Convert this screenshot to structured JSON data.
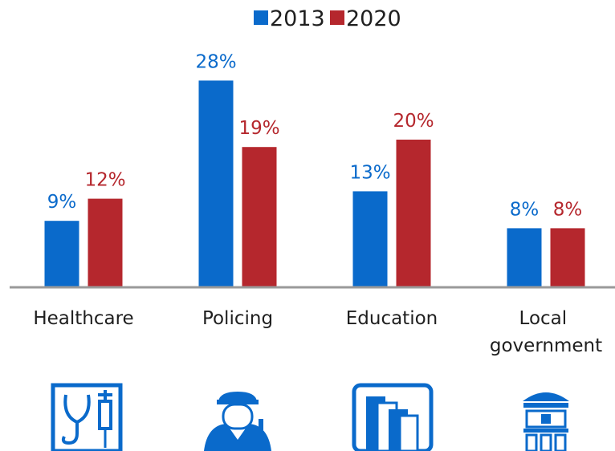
{
  "chart_data": {
    "type": "bar",
    "title": "",
    "xlabel": "",
    "ylabel": "",
    "categories": [
      "Healthcare",
      "Policing",
      "Education",
      "Local government"
    ],
    "series": [
      {
        "name": "2013",
        "values": [
          9,
          28,
          13,
          8
        ],
        "labels": [
          "9%",
          "28%",
          "13%",
          "8%"
        ],
        "color": "#0a6acb"
      },
      {
        "name": "2020",
        "values": [
          12,
          19,
          20,
          8
        ],
        "labels": [
          "12%",
          "19%",
          "20%",
          "8%"
        ],
        "color": "#b5272d"
      }
    ],
    "ylim": [
      0,
      30
    ],
    "grid": false,
    "legend": "top-center",
    "icons": [
      "stethoscope-syringe-icon",
      "police-officer-icon",
      "books-icon",
      "town-hall-icon"
    ],
    "icon_color": "#0a6acb"
  }
}
